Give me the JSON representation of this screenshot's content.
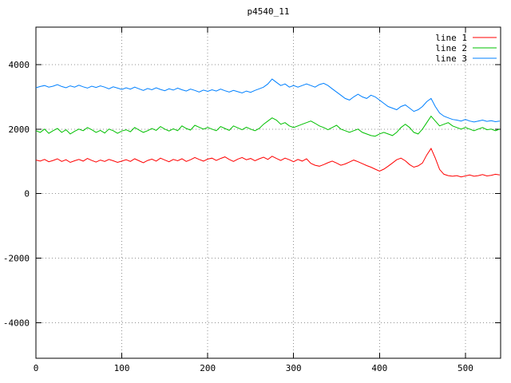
{
  "chart_data": {
    "type": "line",
    "title": "p4540_11",
    "xlabel": "",
    "ylabel": "",
    "xlim": [
      0,
      541
    ],
    "ylim": [
      -5100,
      5160
    ],
    "x_ticks": [
      0,
      100,
      200,
      300,
      400,
      500
    ],
    "y_ticks": [
      -4000,
      -2000,
      0,
      2000,
      4000
    ],
    "grid": true,
    "legend_position": "top-right",
    "background": "#ffffff",
    "grid_color": "#909090",
    "border_color": "#000000",
    "x": [
      0,
      5,
      10,
      15,
      20,
      25,
      30,
      35,
      40,
      45,
      50,
      55,
      60,
      65,
      70,
      75,
      80,
      85,
      90,
      95,
      100,
      105,
      110,
      115,
      120,
      125,
      130,
      135,
      140,
      145,
      150,
      155,
      160,
      165,
      170,
      175,
      180,
      185,
      190,
      195,
      200,
      205,
      210,
      215,
      220,
      225,
      230,
      235,
      240,
      245,
      250,
      255,
      260,
      265,
      270,
      275,
      280,
      285,
      290,
      295,
      300,
      305,
      310,
      315,
      320,
      325,
      330,
      335,
      340,
      345,
      350,
      355,
      360,
      365,
      370,
      375,
      380,
      385,
      390,
      395,
      400,
      405,
      410,
      415,
      420,
      425,
      430,
      435,
      440,
      445,
      450,
      455,
      460,
      465,
      470,
      475,
      480,
      485,
      490,
      495,
      500,
      505,
      510,
      515,
      520,
      525,
      530,
      535,
      540
    ],
    "series": [
      {
        "name": "line 1",
        "color": "#ff0000",
        "values": [
          1040,
          1010,
          1060,
          990,
          1030,
          1080,
          1000,
          1050,
          970,
          1020,
          1060,
          1010,
          1090,
          1030,
          980,
          1040,
          1000,
          1060,
          1020,
          970,
          1010,
          1050,
          1000,
          1080,
          1020,
          960,
          1030,
          1070,
          1010,
          1100,
          1040,
          990,
          1060,
          1020,
          1080,
          1000,
          1050,
          1120,
          1060,
          1010,
          1070,
          1100,
          1030,
          1090,
          1140,
          1060,
          1000,
          1070,
          1120,
          1050,
          1090,
          1020,
          1080,
          1130,
          1060,
          1160,
          1090,
          1030,
          1100,
          1050,
          990,
          1060,
          1010,
          1080,
          940,
          880,
          850,
          900,
          960,
          1010,
          950,
          880,
          920,
          980,
          1040,
          990,
          930,
          870,
          820,
          760,
          700,
          760,
          850,
          950,
          1050,
          1100,
          1020,
          900,
          820,
          860,
          950,
          1200,
          1400,
          1100,
          750,
          600,
          560,
          540,
          560,
          520,
          550,
          580,
          540,
          560,
          590,
          550,
          570,
          600,
          580
        ]
      },
      {
        "name": "line 2",
        "color": "#00c000",
        "values": [
          1950,
          1900,
          2000,
          1870,
          1950,
          2020,
          1900,
          1980,
          1850,
          1930,
          2000,
          1950,
          2050,
          1980,
          1900,
          1960,
          1880,
          2000,
          1950,
          1870,
          1940,
          1980,
          1920,
          2050,
          1970,
          1900,
          1950,
          2020,
          1960,
          2080,
          2000,
          1940,
          2010,
          1950,
          2100,
          2020,
          1970,
          2120,
          2060,
          2000,
          2050,
          2000,
          1950,
          2080,
          2020,
          1960,
          2100,
          2040,
          1980,
          2060,
          2000,
          1950,
          2020,
          2150,
          2250,
          2350,
          2280,
          2150,
          2200,
          2100,
          2050,
          2100,
          2150,
          2200,
          2250,
          2180,
          2100,
          2050,
          1980,
          2050,
          2120,
          2000,
          1950,
          1900,
          1950,
          2000,
          1900,
          1850,
          1800,
          1780,
          1850,
          1900,
          1850,
          1800,
          1900,
          2050,
          2150,
          2050,
          1900,
          1850,
          2000,
          2200,
          2400,
          2250,
          2100,
          2150,
          2200,
          2100,
          2050,
          2000,
          2050,
          2000,
          1950,
          2000,
          2050,
          1980,
          2000,
          1950,
          2000
        ]
      },
      {
        "name": "line 3",
        "color": "#0080ff",
        "values": [
          3280,
          3320,
          3350,
          3300,
          3330,
          3380,
          3320,
          3280,
          3340,
          3300,
          3360,
          3310,
          3270,
          3330,
          3290,
          3340,
          3300,
          3250,
          3310,
          3270,
          3230,
          3280,
          3240,
          3300,
          3250,
          3200,
          3260,
          3220,
          3280,
          3230,
          3190,
          3250,
          3210,
          3270,
          3220,
          3180,
          3240,
          3200,
          3150,
          3210,
          3170,
          3220,
          3180,
          3240,
          3190,
          3150,
          3200,
          3160,
          3120,
          3180,
          3140,
          3200,
          3250,
          3300,
          3400,
          3550,
          3450,
          3350,
          3400,
          3300,
          3350,
          3300,
          3350,
          3400,
          3350,
          3300,
          3380,
          3420,
          3350,
          3250,
          3150,
          3050,
          2950,
          2900,
          3000,
          3080,
          3000,
          2950,
          3050,
          3000,
          2900,
          2800,
          2700,
          2650,
          2600,
          2700,
          2750,
          2650,
          2550,
          2600,
          2700,
          2850,
          2950,
          2700,
          2500,
          2400,
          2350,
          2300,
          2280,
          2250,
          2300,
          2250,
          2220,
          2250,
          2280,
          2240,
          2260,
          2230,
          2250
        ]
      }
    ]
  }
}
